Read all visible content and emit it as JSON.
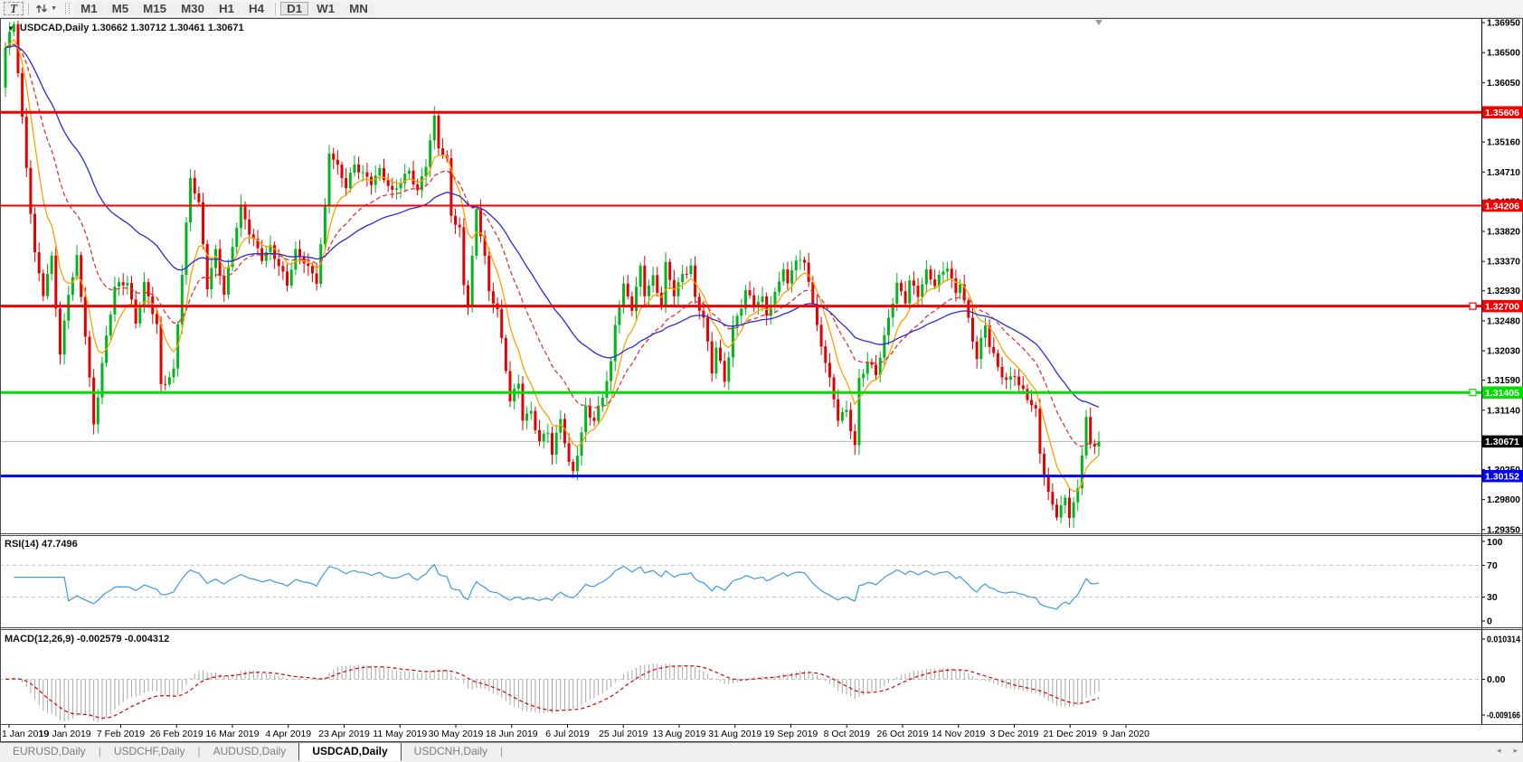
{
  "toolbar": {
    "text_tool_label": "T",
    "timeframes": [
      "M1",
      "M5",
      "M15",
      "M30",
      "H1",
      "H4",
      "D1",
      "W1",
      "MN"
    ],
    "active_timeframe": "D1"
  },
  "chart": {
    "header": "USDCAD,Daily  1.30662 1.30712 1.30461 1.30671",
    "symbol": "USDCAD",
    "period": "Daily",
    "ohlc": {
      "open": "1.30662",
      "high": "1.30712",
      "low": "1.30461",
      "close": "1.30671"
    }
  },
  "indicator_labels": {
    "rsi": "RSI(14) 47.7496",
    "macd": "MACD(12,26,9) -0.002579 -0.004312"
  },
  "axes": {
    "price_ticks": [
      {
        "v": 1.3695,
        "label": "1.36950"
      },
      {
        "v": 1.365,
        "label": "1.36500"
      },
      {
        "v": 1.3605,
        "label": "1.36050"
      },
      {
        "v": 1.356,
        "label": "1.35600"
      },
      {
        "v": 1.3516,
        "label": "1.35160"
      },
      {
        "v": 1.3471,
        "label": "1.34710"
      },
      {
        "v": 1.3427,
        "label": "1.34270"
      },
      {
        "v": 1.3382,
        "label": "1.33820"
      },
      {
        "v": 1.3337,
        "label": "1.33370"
      },
      {
        "v": 1.3293,
        "label": "1.32930"
      },
      {
        "v": 1.3248,
        "label": "1.32480"
      },
      {
        "v": 1.3203,
        "label": "1.32030"
      },
      {
        "v": 1.3159,
        "label": "1.31590"
      },
      {
        "v": 1.3114,
        "label": "1.31140"
      },
      {
        "v": 1.307,
        "label": "1.30700"
      },
      {
        "v": 1.3025,
        "label": "1.30250"
      },
      {
        "v": 1.298,
        "label": "1.29800"
      },
      {
        "v": 1.2935,
        "label": "1.29350"
      }
    ],
    "rsi_ticks": [
      {
        "v": 100,
        "label": "100"
      },
      {
        "v": 70,
        "label": "70"
      },
      {
        "v": 30,
        "label": "30"
      },
      {
        "v": 0,
        "label": "0"
      }
    ],
    "macd_ticks": [
      {
        "v": 0.010314,
        "label": "0.010314"
      },
      {
        "v": 0,
        "label": "0.00"
      },
      {
        "v": -0.009166,
        "label": "-0.009166"
      }
    ],
    "dates": [
      "1 Jan 2019",
      "19 Jan 2019",
      "7 Feb 2019",
      "26 Feb 2019",
      "16 Mar 2019",
      "4 Apr 2019",
      "23 Apr 2019",
      "11 May 2019",
      "30 May 2019",
      "18 Jun 2019",
      "6 Jul 2019",
      "25 Jul 2019",
      "13 Aug 2019",
      "31 Aug 2019",
      "19 Sep 2019",
      "8 Oct 2019",
      "26 Oct 2019",
      "14 Nov 2019",
      "3 Dec 2019",
      "21 Dec 2019",
      "9 Jan 2020"
    ]
  },
  "hlines": [
    {
      "price": 1.35606,
      "label": "1.35606",
      "color": "#f40000",
      "thickness": 3,
      "handle": false,
      "name": "resistance-1.35606"
    },
    {
      "price": 1.34206,
      "label": "1.34206",
      "color": "#f40000",
      "thickness": 2,
      "handle": false,
      "name": "resistance-1.34206"
    },
    {
      "price": 1.327,
      "label": "1.32700",
      "color": "#f40000",
      "thickness": 3,
      "handle": true,
      "name": "resistance-1.32700"
    },
    {
      "price": 1.31405,
      "label": "1.31405",
      "color": "#00df00",
      "thickness": 3,
      "handle": true,
      "name": "support-1.31405"
    },
    {
      "price": 1.30152,
      "label": "1.30152",
      "color": "#0000f0",
      "thickness": 3,
      "handle": false,
      "name": "support-1.30152"
    }
  ],
  "current_price": {
    "value": 1.30671,
    "label": "1.30671"
  },
  "tabs": [
    {
      "label": "EURUSD,Daily",
      "active": false
    },
    {
      "label": "USDCHF,Daily",
      "active": false
    },
    {
      "label": "AUDUSD,Daily",
      "active": false
    },
    {
      "label": "USDCAD,Daily",
      "active": true
    },
    {
      "label": "USDCNH,Daily",
      "active": false
    }
  ],
  "tab_scroll": {
    "left": "◂",
    "right": "▸"
  },
  "chart_data": {
    "type": "candlestick",
    "title": "USDCAD,Daily",
    "bars": 261,
    "last_close": 1.30671,
    "ylim": [
      1.29294,
      1.37018
    ],
    "close_anchors": [
      [
        0,
        1.3655
      ],
      [
        2,
        1.3693
      ],
      [
        3,
        1.362
      ],
      [
        5,
        1.348
      ],
      [
        7,
        1.335
      ],
      [
        9,
        1.329
      ],
      [
        11,
        1.334
      ],
      [
        13,
        1.3195
      ],
      [
        15,
        1.329
      ],
      [
        17,
        1.3345
      ],
      [
        19,
        1.323
      ],
      [
        21,
        1.309
      ],
      [
        23,
        1.318
      ],
      [
        26,
        1.33
      ],
      [
        29,
        1.331
      ],
      [
        31,
        1.3245
      ],
      [
        33,
        1.33
      ],
      [
        36,
        1.324
      ],
      [
        37,
        1.315
      ],
      [
        40,
        1.3175
      ],
      [
        42,
        1.332
      ],
      [
        44,
        1.346
      ],
      [
        46,
        1.342
      ],
      [
        48,
        1.33
      ],
      [
        50,
        1.3355
      ],
      [
        52,
        1.329
      ],
      [
        54,
        1.336
      ],
      [
        56,
        1.3415
      ],
      [
        58,
        1.338
      ],
      [
        61,
        1.3345
      ],
      [
        63,
        1.336
      ],
      [
        65,
        1.333
      ],
      [
        67,
        1.33
      ],
      [
        69,
        1.335
      ],
      [
        71,
        1.334
      ],
      [
        74,
        1.331
      ],
      [
        76,
        1.3415
      ],
      [
        77,
        1.35
      ],
      [
        79,
        1.3475
      ],
      [
        81,
        1.345
      ],
      [
        83,
        1.3485
      ],
      [
        85,
        1.347
      ],
      [
        87,
        1.3455
      ],
      [
        89,
        1.347
      ],
      [
        92,
        1.344
      ],
      [
        94,
        1.346
      ],
      [
        96,
        1.3475
      ],
      [
        98,
        1.344
      ],
      [
        100,
        1.348
      ],
      [
        102,
        1.355
      ],
      [
        103,
        1.351
      ],
      [
        105,
        1.349
      ],
      [
        106,
        1.341
      ],
      [
        108,
        1.3385
      ],
      [
        109,
        1.33
      ],
      [
        110,
        1.327
      ],
      [
        112,
        1.341
      ],
      [
        114,
        1.3345
      ],
      [
        115,
        1.329
      ],
      [
        117,
        1.327
      ],
      [
        118,
        1.322
      ],
      [
        120,
        1.313
      ],
      [
        122,
        1.315
      ],
      [
        123,
        1.31
      ],
      [
        125,
        1.311
      ],
      [
        127,
        1.307
      ],
      [
        129,
        1.3085
      ],
      [
        130,
        1.305
      ],
      [
        132,
        1.31
      ],
      [
        134,
        1.303
      ],
      [
        135,
        1.302
      ],
      [
        137,
        1.308
      ],
      [
        138,
        1.312
      ],
      [
        140,
        1.31
      ],
      [
        142,
        1.3135
      ],
      [
        144,
        1.318
      ],
      [
        145,
        1.324
      ],
      [
        147,
        1.33
      ],
      [
        149,
        1.327
      ],
      [
        151,
        1.333
      ],
      [
        152,
        1.329
      ],
      [
        154,
        1.331
      ],
      [
        156,
        1.327
      ],
      [
        157,
        1.333
      ],
      [
        159,
        1.329
      ],
      [
        161,
        1.332
      ],
      [
        163,
        1.333
      ],
      [
        164,
        1.328
      ],
      [
        166,
        1.325
      ],
      [
        168,
        1.317
      ],
      [
        169,
        1.321
      ],
      [
        171,
        1.316
      ],
      [
        173,
        1.324
      ],
      [
        175,
        1.327
      ],
      [
        176,
        1.329
      ],
      [
        178,
        1.327
      ],
      [
        180,
        1.328
      ],
      [
        181,
        1.326
      ],
      [
        183,
        1.329
      ],
      [
        185,
        1.333
      ],
      [
        186,
        1.33
      ],
      [
        188,
        1.334
      ],
      [
        190,
        1.333
      ],
      [
        191,
        1.331
      ],
      [
        193,
        1.324
      ],
      [
        195,
        1.319
      ],
      [
        197,
        1.313
      ],
      [
        198,
        1.31
      ],
      [
        200,
        1.311
      ],
      [
        202,
        1.306
      ],
      [
        203,
        1.316
      ],
      [
        205,
        1.319
      ],
      [
        207,
        1.317
      ],
      [
        209,
        1.322
      ],
      [
        210,
        1.325
      ],
      [
        212,
        1.33
      ],
      [
        214,
        1.328
      ],
      [
        215,
        1.331
      ],
      [
        217,
        1.329
      ],
      [
        219,
        1.332
      ],
      [
        221,
        1.33
      ],
      [
        222,
        1.331
      ],
      [
        224,
        1.333
      ],
      [
        226,
        1.329
      ],
      [
        227,
        1.331
      ],
      [
        229,
        1.325
      ],
      [
        231,
        1.319
      ],
      [
        233,
        1.324
      ],
      [
        234,
        1.321
      ],
      [
        236,
        1.318
      ],
      [
        238,
        1.316
      ],
      [
        240,
        1.317
      ],
      [
        241,
        1.315
      ],
      [
        243,
        1.313
      ],
      [
        245,
        1.311
      ],
      [
        246,
        1.305
      ],
      [
        248,
        1.299
      ],
      [
        250,
        1.296
      ],
      [
        252,
        1.298
      ],
      [
        253,
        1.2955
      ],
      [
        255,
        1.299
      ],
      [
        257,
        1.3105
      ],
      [
        258,
        1.306
      ],
      [
        260,
        1.30671
      ]
    ],
    "moving_averages": [
      {
        "name": "fast-ma",
        "period": 8,
        "color": "#ffa200",
        "style": "solid"
      },
      {
        "name": "medium-ma",
        "period": 21,
        "color": "#e23434",
        "style": "dashed"
      },
      {
        "name": "slow-ma",
        "period": 45,
        "color": "#2b2bd5",
        "style": "solid"
      }
    ],
    "rsi": {
      "period": 14,
      "current": 47.7496,
      "levels": [
        30,
        70
      ],
      "ylim": [
        0,
        100
      ],
      "color": "#3e9bde"
    },
    "macd": {
      "fast": 12,
      "slow": 26,
      "signal_period": 9,
      "current_main": -0.002579,
      "current_signal": -0.004312,
      "ylim": [
        -0.009166,
        0.010314
      ],
      "hist_color": "#a8a8a8",
      "signal_color": "#d40000"
    },
    "style": {
      "bull": "#00b61e",
      "bear": "#e30000",
      "level_dash": "#c4c4c4",
      "price_line": "#b4b4b4",
      "axis_line": "#000000"
    }
  }
}
